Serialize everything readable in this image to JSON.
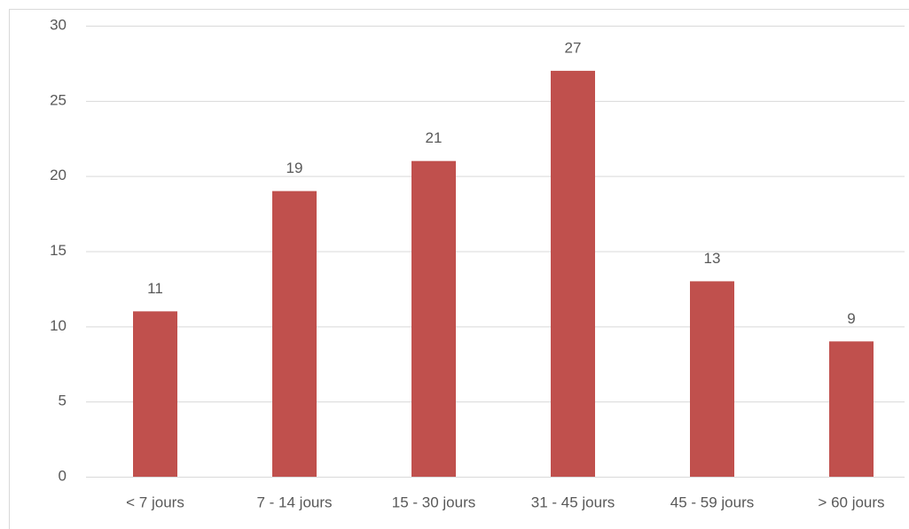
{
  "chart_data": {
    "type": "bar",
    "categories": [
      "< 7 jours",
      "7 - 14 jours",
      "15 - 30 jours",
      "31 - 45 jours",
      "45 - 59 jours",
      "> 60 jours"
    ],
    "values": [
      11,
      19,
      21,
      27,
      13,
      9
    ],
    "color": "#c0504d",
    "ylim": [
      0,
      30
    ],
    "yticks": [
      0,
      5,
      10,
      15,
      20,
      25,
      30
    ],
    "grid": true
  }
}
